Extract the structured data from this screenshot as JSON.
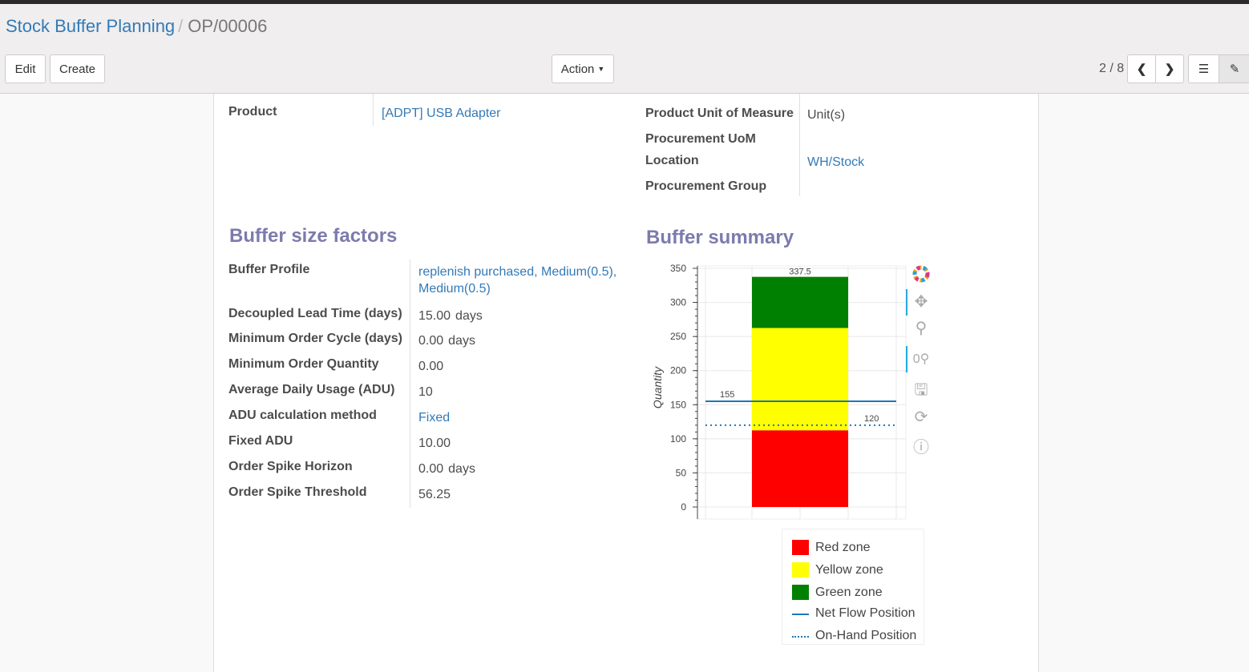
{
  "breadcrumb": {
    "parent": "Stock Buffer Planning",
    "current": "OP/00006"
  },
  "toolbar": {
    "edit": "Edit",
    "create": "Create",
    "action": "Action",
    "pager": "2 / 8"
  },
  "top_fields": {
    "product_label": "Product",
    "product_value": "[ADPT] USB Adapter",
    "uom_label": "Product Unit of Measure",
    "uom_value": "Unit(s)",
    "proc_uom_label": "Procurement UoM",
    "location_label": "Location",
    "location_value": "WH/Stock",
    "proc_group_label": "Procurement Group"
  },
  "factors": {
    "title": "Buffer size factors",
    "rows": [
      {
        "label": "Buffer Profile",
        "value": "replenish purchased, Medium(0.5),",
        "value2": "Medium(0.5)",
        "link": true
      },
      {
        "label": "Decoupled Lead Time (days)",
        "value": "15.00",
        "unit": "days"
      },
      {
        "label": "Minimum Order Cycle (days)",
        "value": "0.00",
        "unit": "days"
      },
      {
        "label": "Minimum Order Quantity",
        "value": "0.00"
      },
      {
        "label": "Average Daily Usage (ADU)",
        "value": "10"
      },
      {
        "label": "ADU calculation method",
        "value": "Fixed",
        "link": true
      },
      {
        "label": "Fixed ADU",
        "value": "10.00"
      },
      {
        "label": "Order Spike Horizon",
        "value": "0.00",
        "unit": "days"
      },
      {
        "label": "Order Spike Threshold",
        "value": "56.25"
      }
    ]
  },
  "summary": {
    "title": "Buffer summary"
  },
  "chart_data": {
    "type": "bar",
    "stacked": true,
    "ylabel": "Quantity",
    "ylim": [
      0,
      350
    ],
    "yticks": [
      "0",
      "50",
      "100",
      "150",
      "200",
      "250",
      "300",
      "350"
    ],
    "grid": true,
    "legend_placement": "bottom",
    "series": [
      {
        "name": "Red zone",
        "value": 112.5,
        "top_label": "112.5",
        "color": "#ff0000"
      },
      {
        "name": "Yellow zone",
        "value": 150,
        "top_label": "262.5",
        "color": "#ffff00"
      },
      {
        "name": "Green zone",
        "value": 75,
        "top_label": "337.5",
        "color": "#008000"
      }
    ],
    "lines": [
      {
        "name": "Net Flow Position",
        "value": 155,
        "label": "155",
        "style": "solid",
        "color": "#1f77b4"
      },
      {
        "name": "On-Hand Position",
        "value": 120,
        "label": "120",
        "style": "dotted",
        "color": "#1f77b4"
      }
    ]
  }
}
